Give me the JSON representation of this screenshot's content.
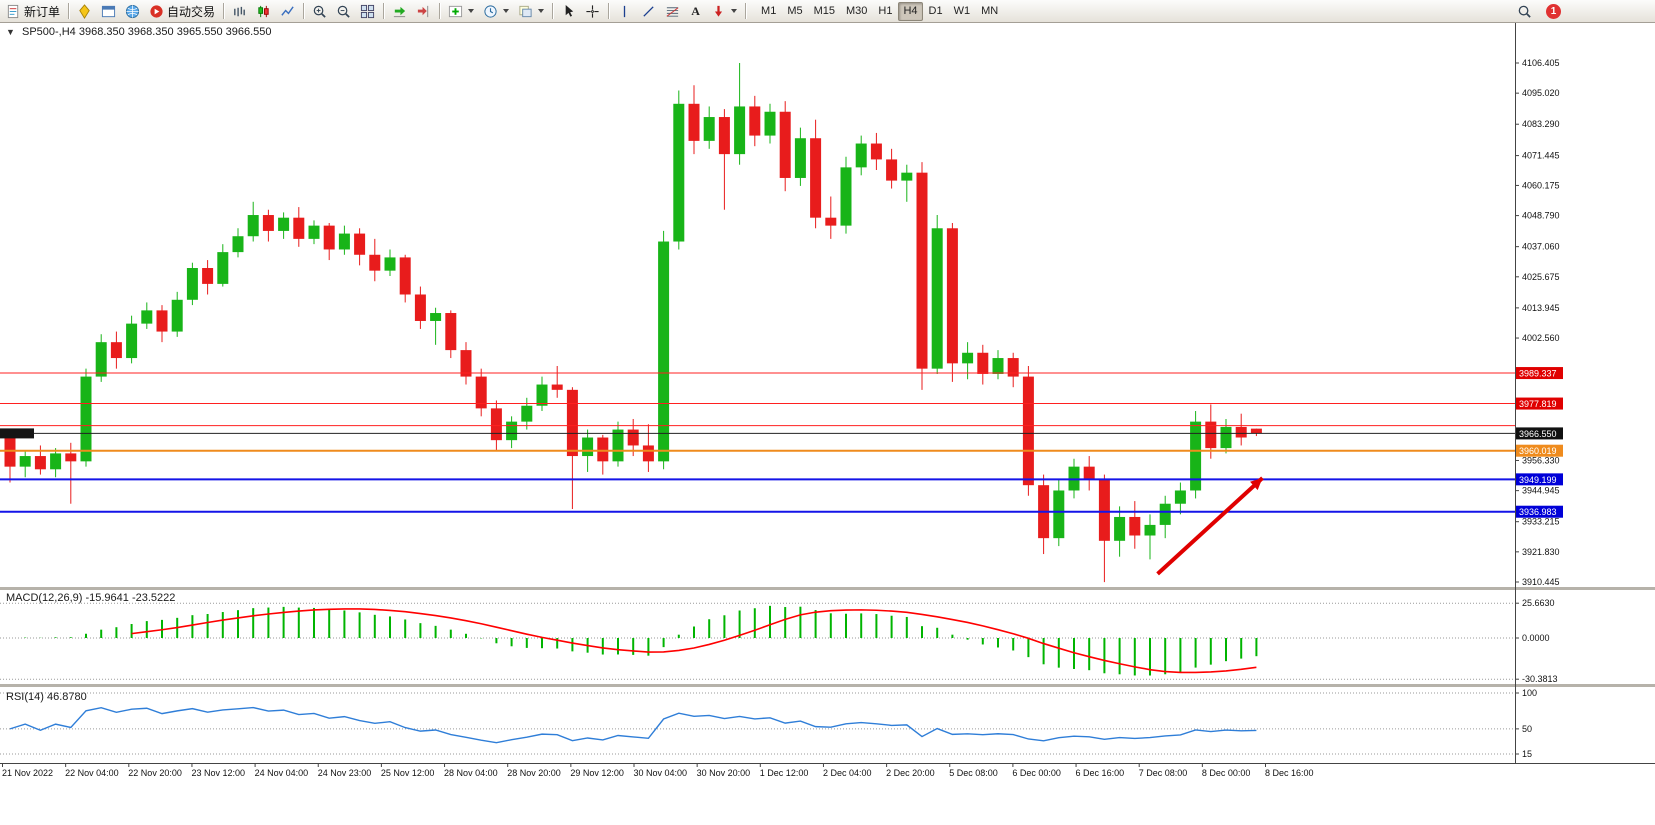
{
  "toolbar": {
    "new_order_label": "新订单",
    "auto_trading_label": "自动交易",
    "text_tool_label": "A",
    "notification_badge": "1",
    "timeframes": [
      "M1",
      "M5",
      "M15",
      "M30",
      "H1",
      "H4",
      "D1",
      "W1",
      "MN"
    ],
    "active_timeframe": "H4"
  },
  "chart": {
    "header": "SP500-,H4 3968.350 3968.350 3965.550 3966.550",
    "axis_ticks": [
      "4106.405",
      "4095.020",
      "4083.290",
      "4071.445",
      "4060.175",
      "4048.790",
      "4037.060",
      "4025.675",
      "4013.945",
      "4002.560",
      "3956.330",
      "3944.945",
      "3933.215",
      "3921.830",
      "3910.445"
    ],
    "hlines": [
      {
        "price": 3989.337,
        "color": "#ff2020",
        "width": 1,
        "tag": "3989.337",
        "tag_color": "#e00000",
        "left_marker": false
      },
      {
        "price": 3977.819,
        "color": "#ff2020",
        "width": 1,
        "tag": "3977.819",
        "tag_color": "#e00000",
        "left_marker": false
      },
      {
        "price": 3969.5,
        "color": "#ff2020",
        "width": 1,
        "tag": "",
        "tag_color": "",
        "left_marker": false
      },
      {
        "price": 3966.55,
        "color": "#222222",
        "width": 1,
        "tag": "3966.550",
        "tag_color": "#111111",
        "left_marker": true
      },
      {
        "price": 3960.019,
        "color": "#ef8b1d",
        "width": 2,
        "tag": "3960.019",
        "tag_color": "#ef8b1d",
        "left_marker": false
      },
      {
        "price": 3949.199,
        "color": "#1414e8",
        "width": 2,
        "tag": "3949.199",
        "tag_color": "#0000d8",
        "left_marker": false
      },
      {
        "price": 3936.983,
        "color": "#1414e8",
        "width": 2,
        "tag": "3936.983",
        "tag_color": "#0000d8",
        "left_marker": false
      }
    ],
    "arrow": {
      "from_bar": 75.5,
      "from_price": 3913.5,
      "to_bar": 82.4,
      "to_price": 3949.7,
      "color": "#e00000"
    },
    "time_labels": [
      "21 Nov 2022",
      "22 Nov 04:00",
      "22 Nov 20:00",
      "23 Nov 12:00",
      "24 Nov 04:00",
      "24 Nov 23:00",
      "25 Nov 12:00",
      "28 Nov 04:00",
      "28 Nov 20:00",
      "29 Nov 12:00",
      "30 Nov 04:00",
      "30 Nov 20:00",
      "1 Dec 12:00",
      "2 Dec 04:00",
      "2 Dec 20:00",
      "5 Dec 08:00",
      "6 Dec 00:00",
      "6 Dec 16:00",
      "7 Dec 08:00",
      "8 Dec 00:00",
      "8 Dec 16:00"
    ]
  },
  "macd": {
    "label": "MACD(12,26,9) -15.9641 -23.5222",
    "axis_labels": [
      "25.6630",
      "0.0000",
      "-30.3813"
    ],
    "histogram_color": "#00b400",
    "signal_color": "#ff0000"
  },
  "rsi": {
    "label": "RSI(14) 46.8780",
    "axis_labels": [
      "100",
      "50",
      "15"
    ],
    "line_color": "#2f7ed8"
  },
  "chart_data": {
    "type": "candlestick",
    "symbol": "SP500-",
    "timeframe": "H4",
    "current_ohlc": [
      3968.35,
      3968.35,
      3965.55,
      3966.55
    ],
    "up_color": "#18b418",
    "down_color": "#e81c1c",
    "y_range": [
      3905,
      4122
    ],
    "indicators": [
      {
        "name": "MACD",
        "params": [
          12,
          26,
          9
        ],
        "current": [
          -15.9641,
          -23.5222
        ]
      },
      {
        "name": "RSI",
        "params": [
          14
        ],
        "current": 46.878
      }
    ],
    "candles": [
      [
        3966,
        3968,
        3948,
        3954
      ],
      [
        3954,
        3960,
        3950,
        3958
      ],
      [
        3958,
        3962,
        3951,
        3953
      ],
      [
        3953,
        3961,
        3950,
        3959
      ],
      [
        3959,
        3963,
        3940,
        3956
      ],
      [
        3956,
        3991,
        3954,
        3988
      ],
      [
        3988,
        4004,
        3986,
        4001
      ],
      [
        4001,
        4005,
        3991,
        3995
      ],
      [
        3995,
        4011,
        3993,
        4008
      ],
      [
        4008,
        4016,
        4006,
        4013
      ],
      [
        4013,
        4015,
        4001,
        4005
      ],
      [
        4005,
        4020,
        4003,
        4017
      ],
      [
        4017,
        4031,
        4015,
        4029
      ],
      [
        4029,
        4032,
        4019,
        4023
      ],
      [
        4023,
        4038,
        4022,
        4035
      ],
      [
        4035,
        4044,
        4033,
        4041
      ],
      [
        4041,
        4054,
        4039,
        4049
      ],
      [
        4049,
        4051,
        4039,
        4043
      ],
      [
        4043,
        4050,
        4040,
        4048
      ],
      [
        4048,
        4052,
        4037,
        4040
      ],
      [
        4040,
        4047,
        4038,
        4045
      ],
      [
        4045,
        4046,
        4032,
        4036
      ],
      [
        4036,
        4045,
        4034,
        4042
      ],
      [
        4042,
        4044,
        4030,
        4034
      ],
      [
        4034,
        4040,
        4024,
        4028
      ],
      [
        4028,
        4036,
        4026,
        4033
      ],
      [
        4033,
        4034,
        4016,
        4019
      ],
      [
        4019,
        4022,
        4006,
        4009
      ],
      [
        4009,
        4014,
        4000,
        4012
      ],
      [
        4012,
        4013,
        3995,
        3998
      ],
      [
        3998,
        4001,
        3985,
        3988
      ],
      [
        3988,
        3991,
        3973,
        3976
      ],
      [
        3976,
        3979,
        3960,
        3964
      ],
      [
        3964,
        3973,
        3961,
        3971
      ],
      [
        3971,
        3980,
        3968,
        3977
      ],
      [
        3977,
        3988,
        3975,
        3985
      ],
      [
        3985,
        3992,
        3980,
        3983
      ],
      [
        3983,
        3984,
        3938,
        3958
      ],
      [
        3958,
        3968,
        3952,
        3965
      ],
      [
        3965,
        3966,
        3951,
        3956
      ],
      [
        3956,
        3971,
        3954,
        3968
      ],
      [
        3968,
        3972,
        3958,
        3962
      ],
      [
        3962,
        3970,
        3952,
        3956
      ],
      [
        3956,
        4043,
        3953,
        4039
      ],
      [
        4039,
        4096,
        4036,
        4091
      ],
      [
        4091,
        4098,
        4072,
        4077
      ],
      [
        4077,
        4090,
        4074,
        4086
      ],
      [
        4086,
        4089,
        4051,
        4072
      ],
      [
        4072,
        4106.4,
        4068,
        4090
      ],
      [
        4090,
        4094,
        4075,
        4079
      ],
      [
        4079,
        4091,
        4076,
        4088
      ],
      [
        4088,
        4092,
        4058,
        4063
      ],
      [
        4063,
        4082,
        4060,
        4078
      ],
      [
        4078,
        4085,
        4044,
        4048
      ],
      [
        4048,
        4056,
        4040,
        4045
      ],
      [
        4045,
        4071,
        4042,
        4067
      ],
      [
        4067,
        4079,
        4064,
        4076
      ],
      [
        4076,
        4080,
        4066,
        4070
      ],
      [
        4070,
        4074,
        4059,
        4062
      ],
      [
        4062,
        4068,
        4054,
        4065
      ],
      [
        4065,
        4069,
        3983,
        3991
      ],
      [
        3991,
        4049,
        3989,
        4044
      ],
      [
        4044,
        4046,
        3986,
        3993
      ],
      [
        3993,
        4001,
        3987,
        3997
      ],
      [
        3997,
        4000,
        3985,
        3989
      ],
      [
        3989,
        3998,
        3987,
        3995
      ],
      [
        3995,
        3997,
        3984,
        3988
      ],
      [
        3988,
        3992,
        3943,
        3947
      ],
      [
        3947,
        3951,
        3921,
        3927
      ],
      [
        3927,
        3949,
        3924,
        3945
      ],
      [
        3945,
        3957,
        3942,
        3954
      ],
      [
        3954,
        3958,
        3945,
        3949
      ],
      [
        3949,
        3951,
        3910.4,
        3926
      ],
      [
        3926,
        3939,
        3920,
        3935
      ],
      [
        3935,
        3941,
        3923,
        3928
      ],
      [
        3928,
        3936,
        3919,
        3932
      ],
      [
        3932,
        3943,
        3927,
        3940
      ],
      [
        3940,
        3948,
        3936,
        3945
      ],
      [
        3945,
        3975,
        3942,
        3971
      ],
      [
        3971,
        3977.5,
        3957,
        3961
      ],
      [
        3961,
        3972,
        3959,
        3969
      ],
      [
        3969,
        3974,
        3962,
        3965
      ],
      [
        3968.35,
        3968.35,
        3965.55,
        3966.55
      ]
    ]
  }
}
